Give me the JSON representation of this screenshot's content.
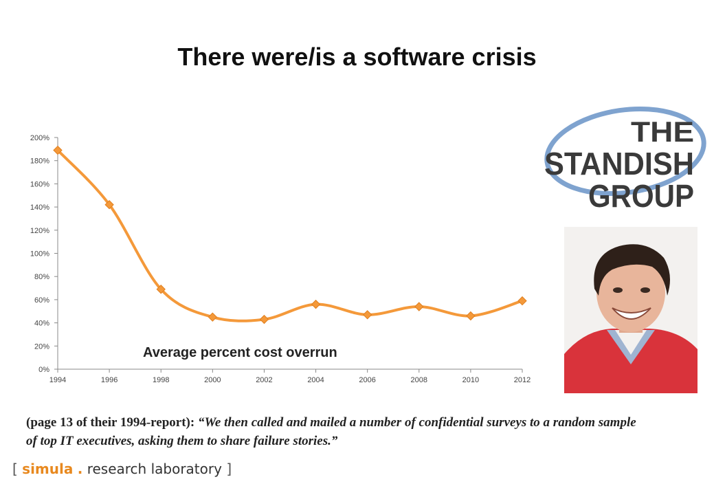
{
  "slide": {
    "title": "There were/is a software crisis"
  },
  "chart_data": {
    "type": "line",
    "title": "",
    "annotation": "Average percent cost overrun",
    "xlabel": "",
    "ylabel": "",
    "x": [
      1994,
      1996,
      1998,
      2000,
      2002,
      2004,
      2006,
      2008,
      2010,
      2012
    ],
    "series": [
      {
        "values": [
          189,
          142,
          69,
          45,
          43,
          56,
          47,
          54,
          46,
          59
        ],
        "color": "#f4993a"
      }
    ],
    "xlim": [
      1994,
      2012
    ],
    "ylim": [
      0,
      200
    ],
    "y_ticks": [
      0,
      20,
      40,
      60,
      80,
      100,
      120,
      140,
      160,
      180,
      200
    ],
    "y_tick_format": "percent",
    "grid": false,
    "smooth": true,
    "marker": "diamond",
    "legend": "none"
  },
  "logo": {
    "line1": "THE",
    "line2": "STANDISH",
    "line3": "GROUP",
    "ring_color": "#7fa3cf"
  },
  "quote": {
    "prefix": "(page 13 of their 1994-report): ",
    "body": "“We then called and mailed a number of confidential surveys to a random sample of top IT executives, asking them to share failure stories.”"
  },
  "footer": {
    "open_bracket": "[",
    "brand": "simula",
    "dot": ".",
    "rest": " research laboratory ",
    "close_bracket": "]"
  }
}
